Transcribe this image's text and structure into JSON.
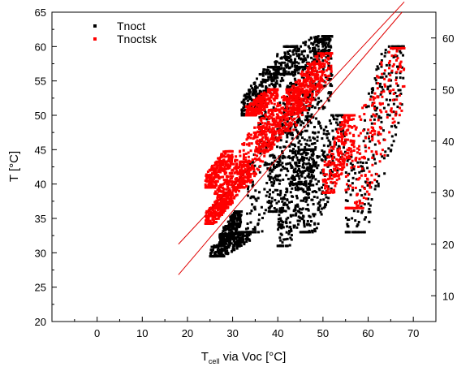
{
  "chart_data": {
    "type": "scatter",
    "title": "",
    "xlabel_main": "T",
    "xlabel_sub": "cell",
    "xlabel_rest": " via Voc [°C]",
    "ylabel": "T [°C]",
    "xlim": [
      -10,
      75
    ],
    "ylim": [
      20,
      65
    ],
    "y2lim": [
      5,
      65
    ],
    "x_ticks": [
      0,
      10,
      20,
      30,
      40,
      50,
      60,
      70
    ],
    "y_ticks": [
      20,
      25,
      30,
      35,
      40,
      45,
      50,
      55,
      60,
      65
    ],
    "y2_ticks": [
      10,
      20,
      30,
      40,
      50,
      60
    ],
    "grid": false,
    "legend_position": "top-left",
    "series": [
      {
        "name": "Tnoct",
        "color": "#000000",
        "axis": "left",
        "clusters": [
          {
            "x": [
              25,
              34
            ],
            "y": [
              29.5,
              33
            ]
          },
          {
            "x": [
              27,
              32
            ],
            "y": [
              31,
              36
            ]
          },
          {
            "x": [
              33,
              44
            ],
            "y": [
              33,
              60
            ]
          },
          {
            "x": [
              38,
              47
            ],
            "y": [
              36,
              57
            ]
          },
          {
            "x": [
              40,
              48
            ],
            "y": [
              31,
              45
            ]
          },
          {
            "x": [
              43,
              52
            ],
            "y": [
              40,
              61
            ]
          },
          {
            "x": [
              45,
              55
            ],
            "y": [
              33,
              50
            ]
          },
          {
            "x": [
              32,
              40
            ],
            "y": [
              50,
              57
            ]
          },
          {
            "x": [
              39,
              52
            ],
            "y": [
              56,
              61.5
            ]
          },
          {
            "x": [
              55,
              68
            ],
            "y": [
              33,
              60
            ]
          }
        ],
        "fit_line": {
          "x1": 18,
          "y1": 26.8,
          "x2": 67.5,
          "y2": 65
        }
      },
      {
        "name": "Tnoctsk",
        "color": "#ff0000",
        "axis": "right",
        "clusters": [
          {
            "x": [
              24,
              30
            ],
            "y2": [
              24,
              30
            ]
          },
          {
            "x": [
              26,
              34
            ],
            "y2": [
              27,
              36
            ]
          },
          {
            "x": [
              30,
              40
            ],
            "y2": [
              31,
              46
            ]
          },
          {
            "x": [
              35,
              45
            ],
            "y2": [
              38,
              50
            ]
          },
          {
            "x": [
              40,
              50
            ],
            "y2": [
              42,
              55
            ]
          },
          {
            "x": [
              43,
              52
            ],
            "y2": [
              46,
              57
            ]
          },
          {
            "x": [
              33,
              40
            ],
            "y2": [
              45,
              50
            ]
          },
          {
            "x": [
              50,
              57
            ],
            "y2": [
              30,
              45
            ]
          },
          {
            "x": [
              55,
              68
            ],
            "y2": [
              27,
              58
            ]
          },
          {
            "x": [
              24,
              30
            ],
            "y2": [
              31,
              38
            ]
          }
        ],
        "fit_line": {
          "x1": 18,
          "y1": 20,
          "x2": 68,
          "y2": 67
        }
      }
    ]
  }
}
